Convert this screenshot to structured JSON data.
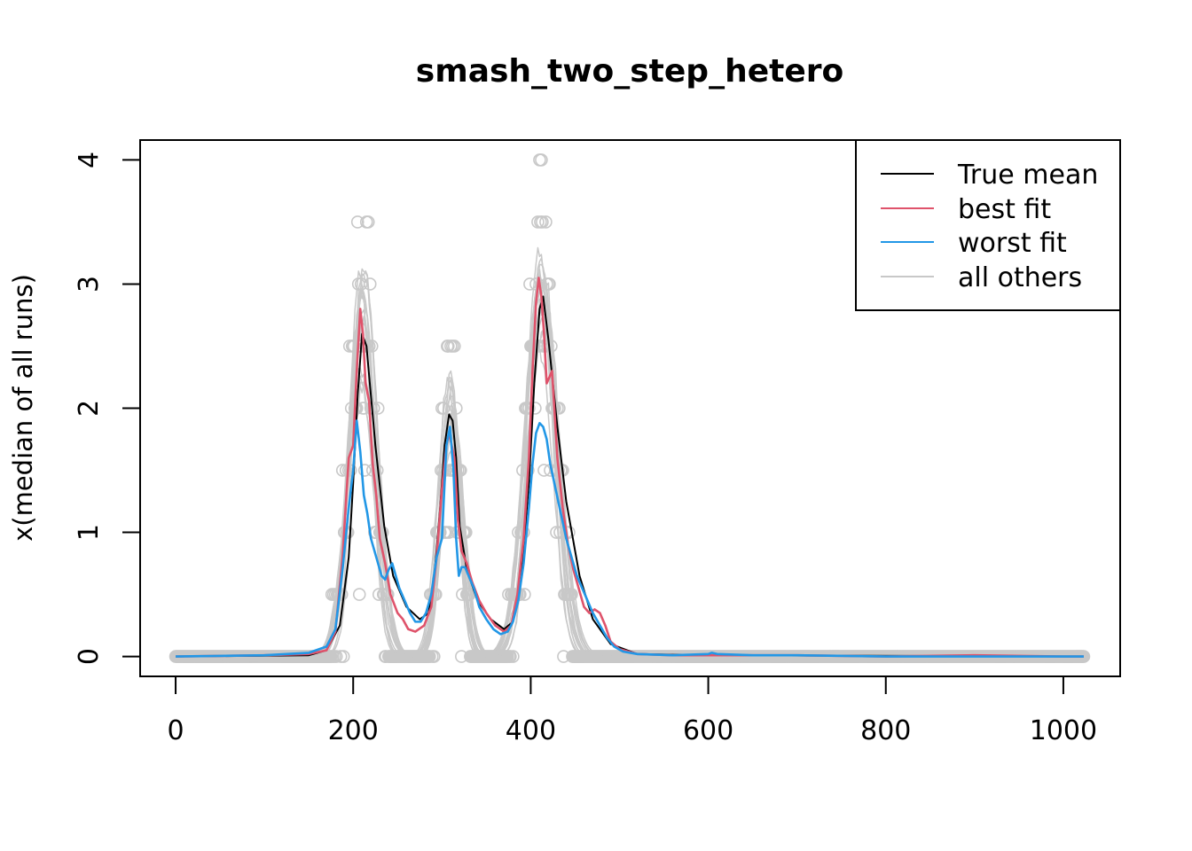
{
  "chart_data": {
    "type": "line",
    "title": "smash_two_step_hetero",
    "xlabel": "",
    "ylabel": "x(median of all runs)",
    "xlim": [
      -40,
      1064
    ],
    "ylim": [
      -0.16,
      4.16
    ],
    "xticks": [
      0,
      200,
      400,
      600,
      800,
      1000
    ],
    "yticks": [
      0,
      1,
      2,
      3,
      4
    ],
    "grid": false,
    "legend_position": "top-right",
    "legend": [
      {
        "label": "True mean",
        "color": "#000000"
      },
      {
        "label": "best fit",
        "color": "#DF536B"
      },
      {
        "label": "worst fit",
        "color": "#2297E6"
      },
      {
        "label": "all others",
        "color": "#C8C8C8"
      }
    ],
    "peaks": [
      {
        "center": 210,
        "height": 2.6,
        "width": 14
      },
      {
        "center": 310,
        "height": 1.9,
        "width": 11
      },
      {
        "center": 412,
        "height": 2.9,
        "width": 16
      }
    ],
    "series": [
      {
        "name": "True mean",
        "color": "#000000",
        "x": [
          0,
          150,
          170,
          185,
          195,
          200,
          205,
          210,
          215,
          220,
          225,
          235,
          245,
          260,
          275,
          285,
          292,
          298,
          303,
          308,
          312,
          316,
          320,
          328,
          340,
          355,
          370,
          380,
          390,
          398,
          404,
          410,
          414,
          420,
          430,
          440,
          455,
          470,
          490,
          520,
          600,
          1023
        ],
        "y": [
          0,
          0.01,
          0.05,
          0.25,
          0.8,
          1.4,
          2.1,
          2.6,
          2.5,
          2.1,
          1.7,
          1.05,
          0.65,
          0.4,
          0.3,
          0.35,
          0.7,
          1.2,
          1.7,
          1.95,
          1.9,
          1.6,
          1.05,
          0.7,
          0.45,
          0.3,
          0.22,
          0.28,
          0.7,
          1.4,
          2.2,
          2.8,
          2.9,
          2.55,
          1.85,
          1.25,
          0.65,
          0.3,
          0.1,
          0.02,
          0.01,
          0
        ]
      },
      {
        "name": "best fit",
        "color": "#DF536B",
        "x": [
          0,
          100,
          150,
          170,
          180,
          188,
          195,
          200,
          204,
          208,
          211,
          214,
          218,
          222,
          226,
          230,
          236,
          242,
          250,
          256,
          262,
          270,
          280,
          288,
          294,
          300,
          305,
          308,
          311,
          314,
          318,
          322,
          328,
          334,
          342,
          350,
          360,
          370,
          378,
          385,
          392,
          398,
          402,
          406,
          409,
          412,
          415,
          418,
          424,
          430,
          436,
          442,
          448,
          454,
          460,
          466,
          472,
          478,
          484,
          490,
          500,
          520,
          560,
          600,
          700,
          800,
          900,
          1000,
          1023
        ],
        "y": [
          0,
          0.01,
          0.02,
          0.05,
          0.2,
          0.8,
          1.6,
          1.7,
          2.3,
          2.8,
          2.6,
          2.2,
          2.05,
          1.55,
          1.3,
          0.95,
          0.75,
          0.5,
          0.35,
          0.3,
          0.22,
          0.2,
          0.25,
          0.4,
          0.8,
          1.35,
          1.7,
          1.8,
          1.7,
          1.6,
          1.1,
          0.85,
          0.75,
          0.6,
          0.45,
          0.35,
          0.25,
          0.2,
          0.25,
          0.5,
          0.95,
          1.6,
          2.3,
          2.85,
          3.05,
          2.9,
          2.6,
          2.2,
          2.3,
          1.6,
          1.2,
          0.9,
          0.7,
          0.55,
          0.4,
          0.35,
          0.38,
          0.35,
          0.25,
          0.12,
          0.06,
          0.02,
          0.01,
          0.01,
          0.01,
          0,
          0.01,
          0,
          0
        ]
      },
      {
        "name": "worst fit",
        "color": "#2297E6",
        "x": [
          0,
          100,
          150,
          170,
          180,
          188,
          195,
          200,
          204,
          208,
          212,
          216,
          220,
          224,
          228,
          232,
          236,
          240,
          244,
          248,
          252,
          258,
          264,
          270,
          276,
          282,
          288,
          294,
          300,
          305,
          309,
          313,
          316,
          319,
          322,
          326,
          330,
          336,
          342,
          350,
          358,
          366,
          374,
          380,
          386,
          392,
          398,
          402,
          406,
          410,
          414,
          418,
          422,
          428,
          434,
          440,
          446,
          452,
          458,
          464,
          470,
          478,
          486,
          494,
          504,
          520,
          560,
          600,
          604,
          610,
          650,
          700,
          800,
          900,
          1000,
          1023
        ],
        "y": [
          0,
          0.01,
          0.03,
          0.08,
          0.22,
          0.7,
          1.2,
          1.5,
          1.9,
          1.65,
          1.3,
          1.15,
          0.95,
          0.85,
          0.75,
          0.65,
          0.62,
          0.7,
          0.75,
          0.65,
          0.55,
          0.45,
          0.35,
          0.28,
          0.28,
          0.35,
          0.5,
          0.8,
          0.95,
          1.7,
          1.85,
          1.5,
          0.95,
          0.65,
          0.72,
          0.72,
          0.65,
          0.55,
          0.4,
          0.3,
          0.22,
          0.18,
          0.2,
          0.28,
          0.45,
          0.75,
          1.2,
          1.55,
          1.8,
          1.88,
          1.85,
          1.75,
          1.55,
          1.35,
          1.15,
          0.95,
          0.8,
          0.65,
          0.55,
          0.45,
          0.35,
          0.25,
          0.15,
          0.08,
          0.04,
          0.02,
          0.01,
          0.02,
          0.03,
          0.02,
          0.01,
          0.01,
          0,
          0,
          0,
          0
        ]
      }
    ],
    "others": {
      "name": "all others",
      "color": "#C8C8C8",
      "count": 14
    },
    "observations": {
      "color": "#C8C8C8",
      "count": 1024
    }
  }
}
